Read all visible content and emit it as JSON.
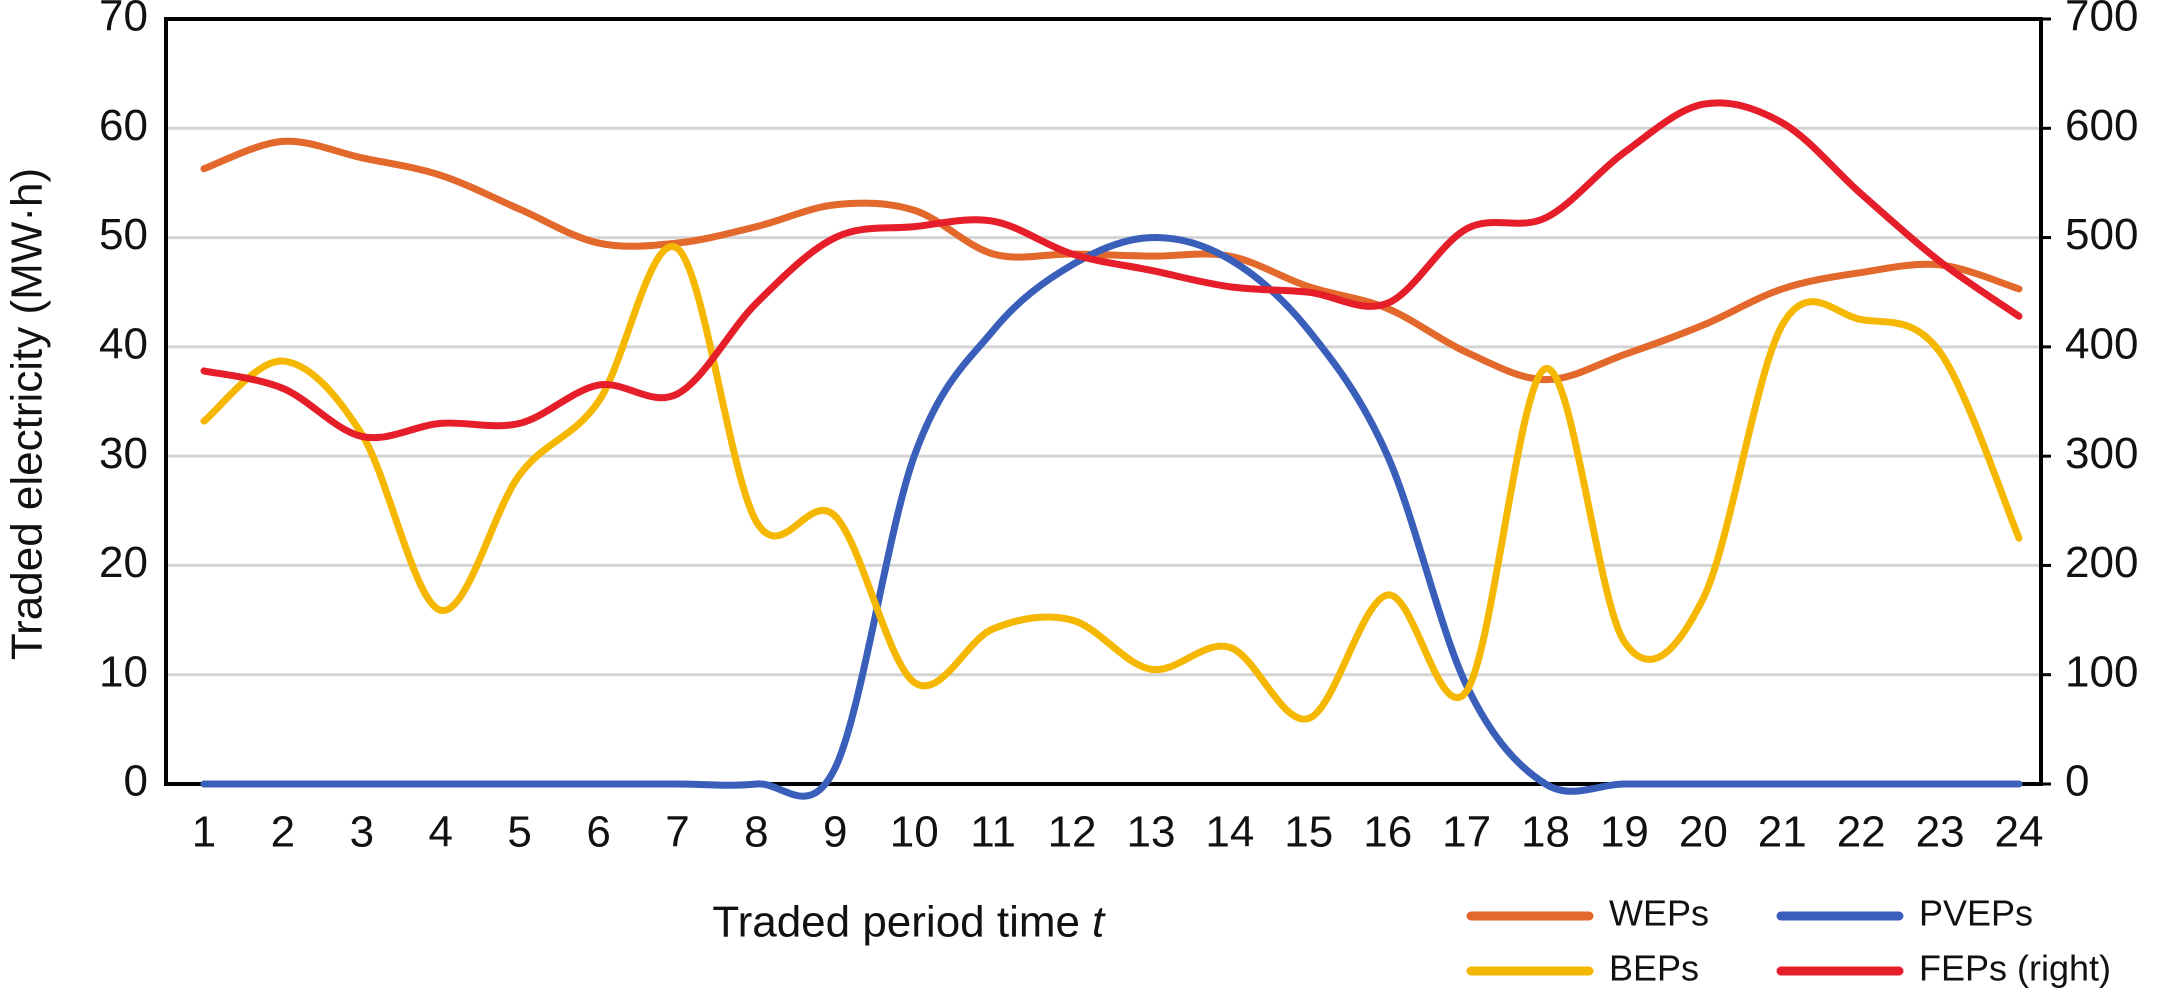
{
  "chart_data": {
    "type": "line",
    "y_label": "Traded electricity (MW·h)",
    "x_label": "Traded period time",
    "x_label_symbol": "t",
    "categories": [
      "1",
      "2",
      "3",
      "4",
      "5",
      "6",
      "7",
      "8",
      "9",
      "10",
      "11",
      "12",
      "13",
      "14",
      "15",
      "16",
      "17",
      "18",
      "19",
      "20",
      "21",
      "22",
      "23",
      "24"
    ],
    "ylim": [
      0,
      70
    ],
    "yticks": [
      0,
      10,
      20,
      30,
      40,
      50,
      60,
      70
    ],
    "y2lim": [
      0,
      700
    ],
    "y2ticks": [
      0,
      100,
      200,
      300,
      400,
      500,
      600,
      700
    ],
    "grid": true,
    "series": [
      {
        "name": "WEPs",
        "color": "#e2682c",
        "values": [
          56.3,
          58.8,
          57.3,
          55.7,
          52.6,
          49.5,
          49.5,
          51,
          53,
          52.5,
          48.5,
          48.5,
          48.3,
          48.3,
          45.5,
          43.5,
          39.5,
          37,
          39.3,
          42,
          45.3,
          46.8,
          47.5,
          45.3
        ]
      },
      {
        "name": "PVEPs",
        "color": "#3a5fba",
        "values": [
          0,
          0,
          0,
          0,
          0,
          0,
          0,
          0,
          1.5,
          30,
          41.5,
          47.5,
          50,
          48,
          41.5,
          30,
          9,
          0,
          0,
          0,
          0,
          0,
          0,
          0
        ]
      },
      {
        "name": "BEPs",
        "color": "#f5b700",
        "values": [
          33.2,
          38.7,
          32,
          15.9,
          28.3,
          35,
          49,
          24,
          24.5,
          9.3,
          14.2,
          15,
          10.5,
          12.5,
          6,
          17.3,
          8.5,
          38,
          13,
          17,
          42,
          42.5,
          39.5,
          22.5
        ]
      },
      {
        "name": "FEPs (right)",
        "color": "#e61e2a",
        "axis": "y2",
        "values": [
          378,
          362,
          318,
          330,
          330,
          365,
          357,
          440,
          500,
          510,
          515,
          485,
          470,
          455,
          450,
          440,
          508,
          518,
          578,
          622,
          605,
          540,
          478,
          428
        ]
      }
    ]
  }
}
